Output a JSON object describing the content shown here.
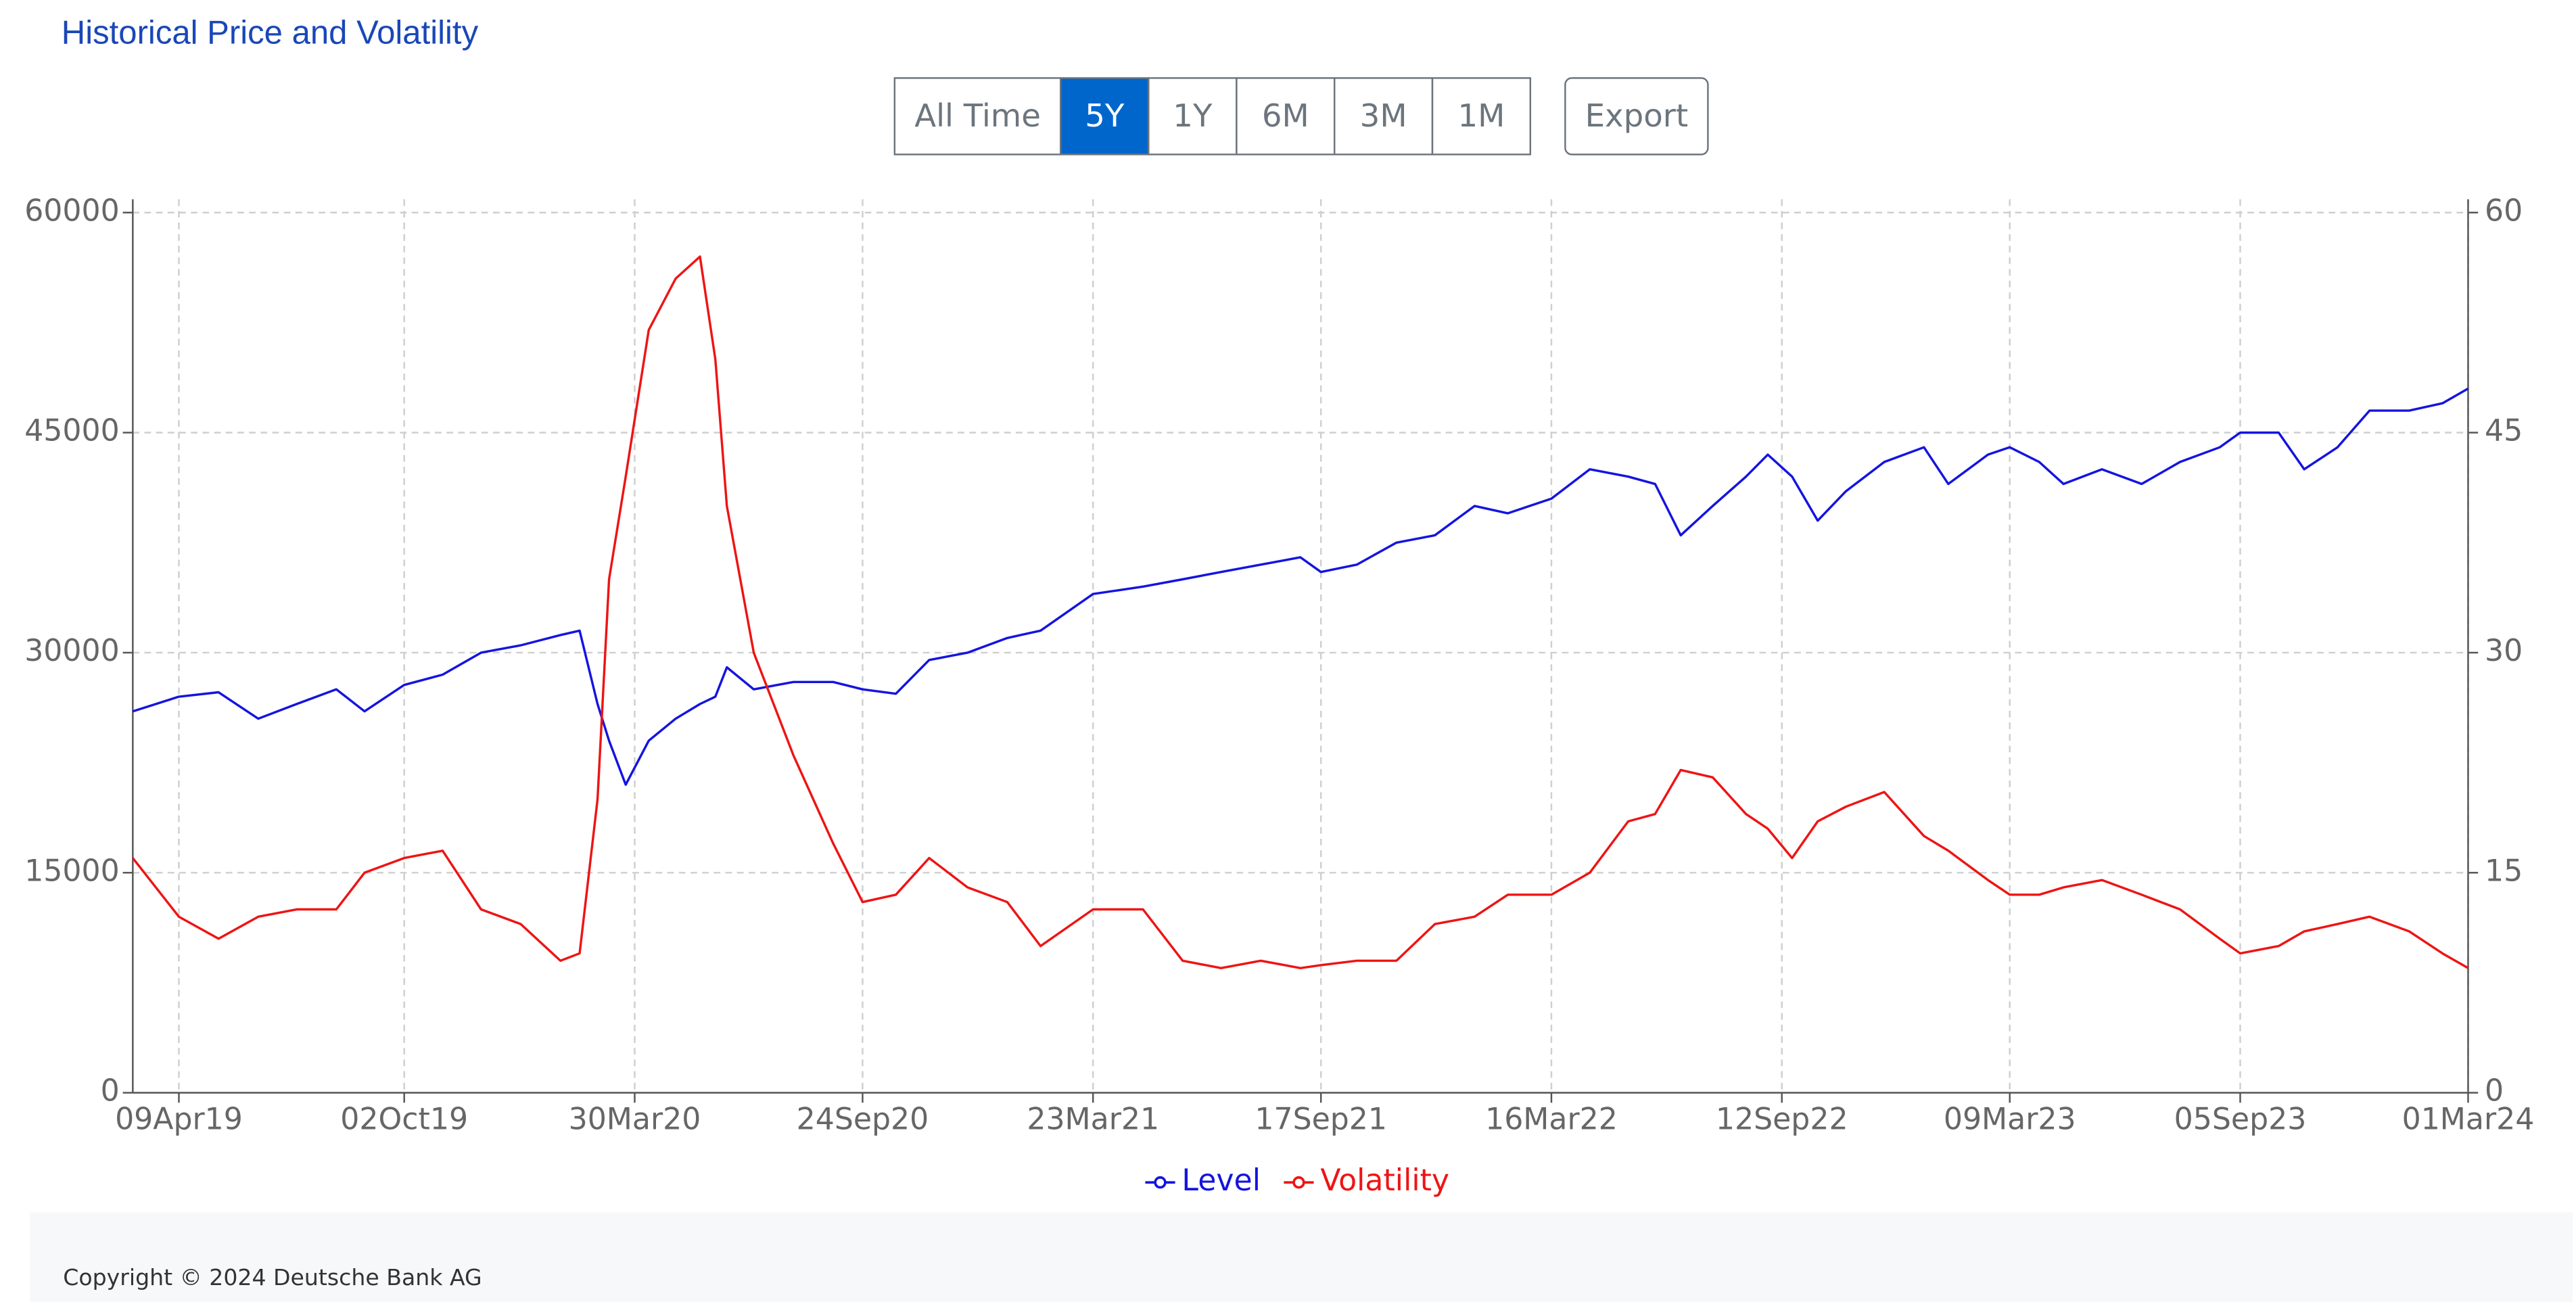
{
  "chart_data": {
    "type": "line",
    "title": "Historical Price and Volatility",
    "x": [
      "2019-03-04",
      "2019-04-09",
      "2019-05-10",
      "2019-06-10",
      "2019-07-10",
      "2019-08-10",
      "2019-09-01",
      "2019-10-02",
      "2019-11-01",
      "2019-12-01",
      "2020-01-01",
      "2020-02-01",
      "2020-02-16",
      "2020-03-01",
      "2020-03-10",
      "2020-03-23",
      "2020-04-10",
      "2020-05-01",
      "2020-05-20",
      "2020-06-01",
      "2020-06-10",
      "2020-07-01",
      "2020-08-01",
      "2020-09-01",
      "2020-09-24",
      "2020-10-20",
      "2020-11-15",
      "2020-12-15",
      "2021-01-15",
      "2021-02-10",
      "2021-03-23",
      "2021-05-01",
      "2021-06-01",
      "2021-07-01",
      "2021-08-01",
      "2021-09-01",
      "2021-09-17",
      "2021-10-15",
      "2021-11-15",
      "2021-12-15",
      "2022-01-15",
      "2022-02-10",
      "2022-03-16",
      "2022-04-15",
      "2022-05-15",
      "2022-06-05",
      "2022-06-25",
      "2022-07-20",
      "2022-08-15",
      "2022-09-01",
      "2022-09-20",
      "2022-10-10",
      "2022-11-01",
      "2022-12-01",
      "2023-01-01",
      "2023-01-20",
      "2023-02-20",
      "2023-03-09",
      "2023-04-01",
      "2023-04-20",
      "2023-05-20",
      "2023-06-20",
      "2023-07-20",
      "2023-08-20",
      "2023-09-05",
      "2023-10-05",
      "2023-10-25",
      "2023-11-20",
      "2023-12-15",
      "2024-01-15",
      "2024-02-10",
      "2024-03-01"
    ],
    "series": [
      {
        "name": "Level",
        "color": "#1414e0",
        "values": [
          26000,
          27000,
          27300,
          25500,
          26500,
          27500,
          26000,
          27800,
          28500,
          30000,
          30500,
          31200,
          31500,
          26500,
          24000,
          21000,
          24000,
          25500,
          26500,
          27000,
          29000,
          27500,
          28000,
          28000,
          27500,
          27200,
          29500,
          30000,
          31000,
          31500,
          34000,
          34500,
          35000,
          35500,
          36000,
          36500,
          35500,
          36000,
          37500,
          38000,
          40000,
          39500,
          40500,
          42500,
          42000,
          41500,
          38000,
          40000,
          42000,
          43500,
          42000,
          39000,
          41000,
          43000,
          44000,
          41500,
          43500,
          44000,
          43000,
          41500,
          42500,
          41500,
          43000,
          44000,
          45000,
          45000,
          42500,
          44000,
          46500,
          46500,
          47000,
          48000
        ]
      },
      {
        "name": "Volatility",
        "color": "#ee1414",
        "axis": "y2",
        "values": [
          16,
          12,
          10.5,
          12,
          12.5,
          12.5,
          15,
          16,
          16.5,
          12.5,
          11.5,
          9,
          9.5,
          20,
          35,
          42,
          52,
          55.5,
          57,
          50,
          40,
          30,
          23,
          17,
          13,
          13.5,
          16,
          14,
          13,
          10,
          12.5,
          12.5,
          9,
          8.5,
          9,
          8.5,
          8.7,
          9,
          9,
          11.5,
          12,
          13.5,
          13.5,
          15,
          18.5,
          19,
          22,
          21.5,
          19,
          18,
          16,
          18.5,
          19.5,
          20.5,
          17.5,
          16.5,
          14.5,
          13.5,
          13.5,
          14,
          14.5,
          13.5,
          12.5,
          10.5,
          9.5,
          10,
          11,
          11.5,
          12,
          11,
          9.5,
          8.5
        ]
      }
    ],
    "xlim": [
      "2019-03-04",
      "2024-03-01"
    ],
    "xticks": [
      {
        "value": "2019-04-09",
        "label": "09Apr19"
      },
      {
        "value": "2019-10-02",
        "label": "02Oct19"
      },
      {
        "value": "2020-03-30",
        "label": "30Mar20"
      },
      {
        "value": "2020-09-24",
        "label": "24Sep20"
      },
      {
        "value": "2021-03-23",
        "label": "23Mar21"
      },
      {
        "value": "2021-09-17",
        "label": "17Sep21"
      },
      {
        "value": "2022-03-16",
        "label": "16Mar22"
      },
      {
        "value": "2022-09-12",
        "label": "12Sep22"
      },
      {
        "value": "2023-03-09",
        "label": "09Mar23"
      },
      {
        "value": "2023-09-05",
        "label": "05Sep23"
      },
      {
        "value": "2024-03-01",
        "label": "01Mar24"
      }
    ],
    "ylim": [
      0,
      60000
    ],
    "yticks": [
      0,
      15000,
      30000,
      45000,
      60000
    ],
    "y2lim": [
      0,
      60
    ],
    "y2ticks": [
      0,
      15,
      30,
      45,
      60
    ],
    "grid": true,
    "legend": "bottom"
  },
  "toolbar": {
    "ranges": [
      "All Time",
      "5Y",
      "1Y",
      "6M",
      "3M",
      "1M"
    ],
    "active": "5Y",
    "export": "Export"
  },
  "footer": "Copyright © 2024 Deutsche Bank AG"
}
